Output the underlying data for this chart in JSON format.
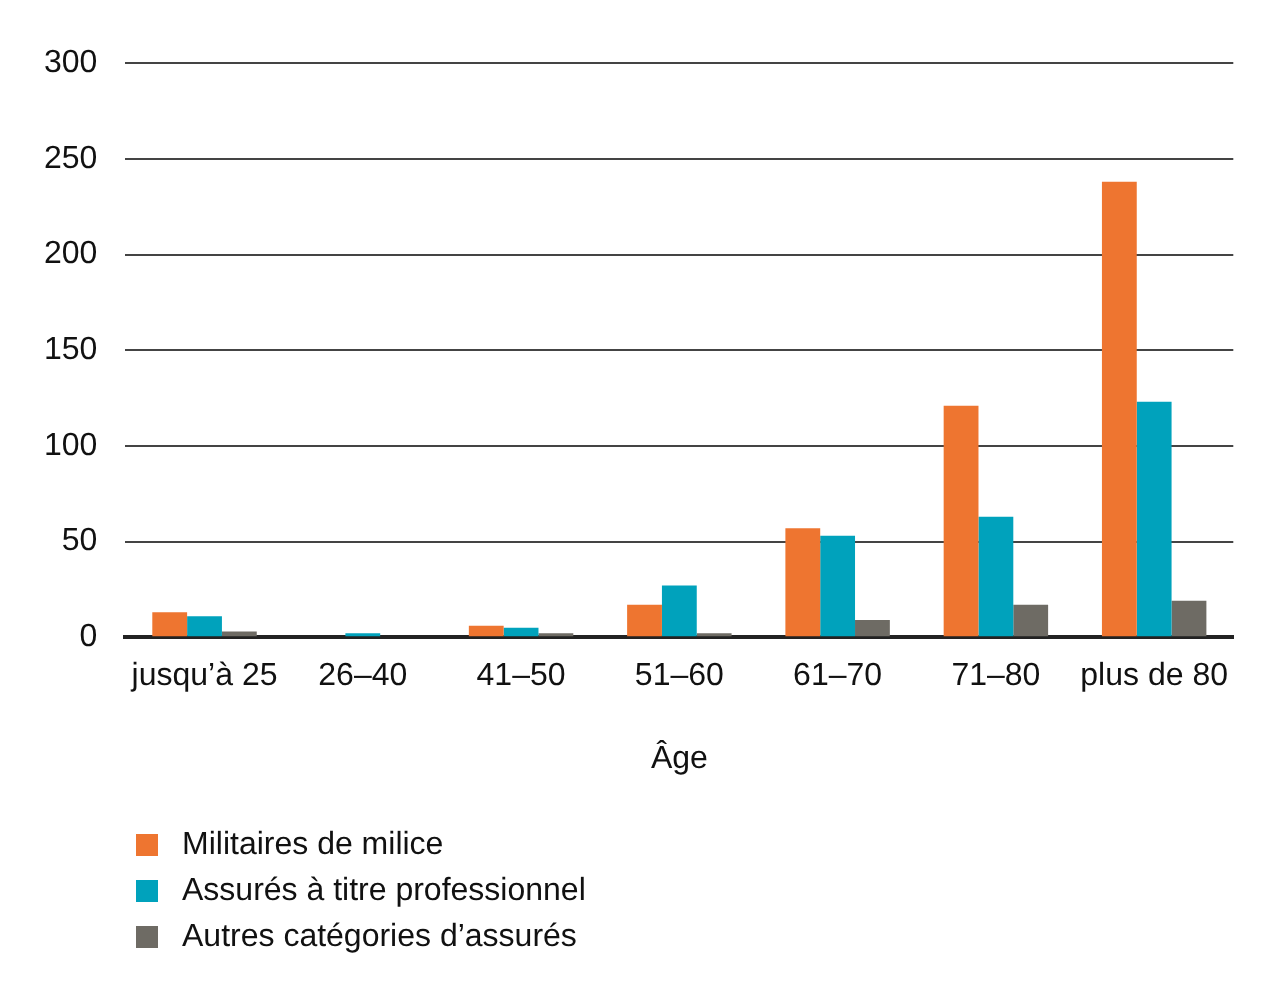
{
  "chart_data": {
    "type": "bar",
    "xlabel": "Âge",
    "categories": [
      "jusqu’à 25",
      "26–40",
      "41–50",
      "51–60",
      "61–70",
      "71–80",
      "plus de 80"
    ],
    "series": [
      {
        "name": "Militaires de milice",
        "color": "#ee7530",
        "values": [
          13,
          0,
          6,
          17,
          57,
          121,
          238
        ]
      },
      {
        "name": "Assurés à titre professionnel",
        "color": "#00a2bc",
        "values": [
          11,
          2,
          5,
          27,
          53,
          63,
          123
        ]
      },
      {
        "name": "Autres catégories d’assurés",
        "color": "#6e6b64",
        "values": [
          3,
          0,
          2,
          2,
          9,
          17,
          19
        ]
      }
    ],
    "ylim": [
      0,
      300
    ],
    "yticks": [
      0,
      50,
      100,
      150,
      200,
      250,
      300
    ],
    "grid": "y",
    "legend": "bottom left"
  }
}
